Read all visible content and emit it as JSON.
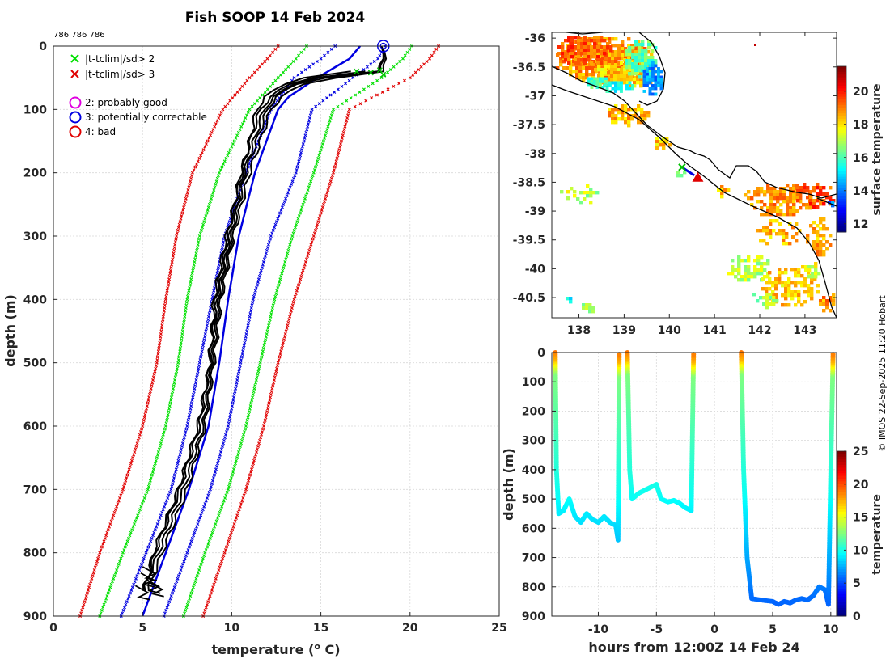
{
  "title": "Fish SOOP 14 Feb 2024",
  "id_label": "786 786 786",
  "credit": "© IMOS 22-Sep-2025 11:20 Hobart",
  "legend": {
    "items": [
      {
        "symbol": "x",
        "color": "#00e000",
        "label": "|t-tclim|/sd> 2"
      },
      {
        "symbol": "x",
        "color": "#e00000",
        "label": "|t-tclim|/sd> 3"
      },
      {
        "symbol": "o",
        "color": "#e000e0",
        "label": "2: probably good"
      },
      {
        "symbol": "o",
        "color": "#0000e0",
        "label": "3: potentially correctable"
      },
      {
        "symbol": "o",
        "color": "#e00000",
        "label": "4: bad"
      }
    ]
  },
  "chart_data": [
    {
      "type": "line",
      "name": "profile",
      "xlabel": "temperature (o C)",
      "ylabel": "depth (m)",
      "xlim": [
        0,
        25
      ],
      "ylim": [
        900,
        0
      ],
      "xticks": [
        0,
        5,
        10,
        15,
        20,
        25
      ],
      "yticks": [
        0,
        100,
        200,
        300,
        400,
        500,
        600,
        700,
        800,
        900
      ],
      "series": [
        {
          "name": "red-low",
          "color": "#e00000",
          "style": "dotted",
          "depth": [
            0,
            20,
            50,
            100,
            200,
            300,
            400,
            500,
            600,
            700,
            800,
            900
          ],
          "temp": [
            12.6,
            12.0,
            11.0,
            9.5,
            7.8,
            6.9,
            6.3,
            5.8,
            5.0,
            3.9,
            2.6,
            1.5
          ]
        },
        {
          "name": "green-low",
          "color": "#00e000",
          "style": "dotted",
          "depth": [
            0,
            20,
            50,
            100,
            200,
            300,
            400,
            500,
            600,
            700,
            800,
            900
          ],
          "temp": [
            14.2,
            13.6,
            12.6,
            11.0,
            9.3,
            8.2,
            7.5,
            7.0,
            6.3,
            5.3,
            3.9,
            2.6
          ]
        },
        {
          "name": "blue-low",
          "color": "#0000e0",
          "style": "dotted",
          "depth": [
            0,
            20,
            50,
            100,
            200,
            300,
            400,
            500,
            600,
            700,
            800,
            900
          ],
          "temp": [
            15.8,
            15.0,
            13.5,
            12.2,
            10.8,
            9.6,
            8.9,
            8.2,
            7.5,
            6.6,
            5.2,
            3.8
          ]
        },
        {
          "name": "blue-mean",
          "color": "#0000e0",
          "style": "solid",
          "depth": [
            0,
            20,
            50,
            80,
            100,
            200,
            300,
            400,
            500,
            600,
            700,
            800,
            900
          ],
          "temp": [
            17.2,
            16.6,
            14.8,
            13.2,
            12.6,
            11.3,
            10.4,
            9.8,
            9.3,
            8.7,
            7.6,
            6.3,
            5.0
          ]
        },
        {
          "name": "blue-high",
          "color": "#0000e0",
          "style": "dotted",
          "depth": [
            0,
            20,
            50,
            100,
            200,
            300,
            400,
            500,
            600,
            700,
            800,
            900
          ],
          "temp": [
            18.6,
            18.2,
            16.8,
            14.5,
            13.6,
            12.2,
            11.2,
            10.5,
            9.8,
            8.8,
            7.5,
            6.2
          ]
        },
        {
          "name": "green-high",
          "color": "#00e000",
          "style": "dotted",
          "depth": [
            0,
            20,
            50,
            100,
            200,
            300,
            400,
            500,
            600,
            700,
            800,
            900
          ],
          "temp": [
            20.1,
            19.6,
            18.4,
            15.7,
            14.6,
            13.4,
            12.4,
            11.6,
            10.8,
            9.8,
            8.5,
            7.3
          ]
        },
        {
          "name": "red-high",
          "color": "#e00000",
          "style": "dotted",
          "depth": [
            0,
            20,
            50,
            100,
            200,
            300,
            400,
            500,
            600,
            700,
            800,
            900
          ],
          "temp": [
            21.6,
            21.1,
            20.0,
            16.6,
            15.7,
            14.6,
            13.5,
            12.6,
            11.8,
            10.8,
            9.6,
            8.4
          ]
        },
        {
          "name": "obs-1",
          "color": "#000000",
          "style": "solid",
          "depth": [
            0,
            40,
            50,
            60,
            80,
            100,
            200,
            300,
            400,
            500,
            600,
            700,
            800,
            860
          ],
          "temp": [
            18.5,
            18.4,
            15.2,
            13.6,
            12.5,
            12.0,
            10.8,
            10.0,
            9.3,
            8.9,
            8.4,
            7.3,
            5.9,
            5.0
          ]
        },
        {
          "name": "obs-2",
          "color": "#000000",
          "style": "solid",
          "depth": [
            0,
            40,
            50,
            60,
            80,
            100,
            200,
            300,
            400,
            500,
            600,
            700,
            800,
            860
          ],
          "temp": [
            18.5,
            18.3,
            14.5,
            13.2,
            12.2,
            11.6,
            10.5,
            9.8,
            9.1,
            8.8,
            8.2,
            7.1,
            5.7,
            5.1
          ]
        },
        {
          "name": "obs-3",
          "color": "#000000",
          "style": "solid",
          "depth": [
            0,
            40,
            50,
            60,
            80,
            100,
            200,
            300,
            400,
            500,
            600,
            700,
            800,
            860
          ],
          "temp": [
            18.5,
            18.6,
            15.8,
            14.0,
            12.8,
            12.2,
            11.0,
            10.1,
            9.4,
            9.0,
            8.5,
            7.5,
            6.1,
            5.3
          ]
        },
        {
          "name": "obs-4",
          "color": "#000000",
          "style": "solid",
          "depth": [
            40,
            50,
            60,
            80,
            100,
            200,
            300,
            400,
            500
          ],
          "temp": [
            17.6,
            14.8,
            13.4,
            12.4,
            11.8,
            10.7,
            9.9,
            9.2,
            8.7
          ]
        },
        {
          "name": "obs-5",
          "color": "#000000",
          "style": "solid",
          "depth": [
            40,
            50,
            60,
            80,
            100,
            200,
            300,
            400,
            500,
            600,
            700,
            800,
            850
          ],
          "temp": [
            16.8,
            14.0,
            12.9,
            11.9,
            11.4,
            10.6,
            9.7,
            9.0,
            8.8,
            8.1,
            7.0,
            5.6,
            5.2
          ]
        }
      ]
    },
    {
      "type": "heatmap",
      "name": "sst-map",
      "xlim": [
        137.4,
        143.7
      ],
      "ylim": [
        -40.85,
        -35.9
      ],
      "xticks": [
        138,
        139,
        140,
        141,
        142,
        143
      ],
      "yticks": [
        -36,
        -36.5,
        -37,
        -37.5,
        -38,
        -38.5,
        -39,
        -39.5,
        -40,
        -40.5
      ],
      "colorbar": {
        "label": "surface temperature",
        "ticks": [
          12,
          14,
          16,
          18,
          20
        ],
        "range": [
          11.5,
          21.5
        ]
      }
    },
    {
      "type": "scatter",
      "name": "depth-time",
      "xlabel": "hours from 12:00Z 14 Feb 24",
      "ylabel": "depth (m)",
      "xlim": [
        -14,
        10.5
      ],
      "ylim": [
        900,
        0
      ],
      "xticks": [
        -10,
        -5,
        0,
        5,
        10
      ],
      "yticks": [
        0,
        100,
        200,
        300,
        400,
        500,
        600,
        700,
        800,
        900
      ],
      "colorbar": {
        "label": "temperature",
        "ticks": [
          0,
          5,
          10,
          15,
          20,
          25
        ],
        "range": [
          0,
          25
        ]
      },
      "tracks": [
        {
          "hours": [
            -13.7,
            -13.6,
            -13.4,
            -13.0,
            -12.5,
            -12.0,
            -11.5,
            -11.0,
            -10.5,
            -10.0,
            -9.5,
            -9.0,
            -8.5,
            -8.3,
            -8.2
          ],
          "depth": [
            0,
            400,
            550,
            540,
            500,
            560,
            580,
            550,
            570,
            580,
            560,
            580,
            590,
            640,
            0
          ]
        },
        {
          "hours": [
            -7.5,
            -7.3,
            -7.1,
            -6.5,
            -6.0,
            -5.5,
            -5.0,
            -4.6,
            -4.0,
            -3.5,
            -3.0,
            -2.5,
            -2.0,
            -1.8
          ],
          "depth": [
            0,
            400,
            500,
            480,
            470,
            460,
            450,
            500,
            510,
            505,
            515,
            530,
            540,
            0
          ]
        },
        {
          "hours": [
            2.3,
            2.5,
            2.8,
            3.2,
            4.0,
            5.0,
            5.5,
            6.0,
            6.5,
            7.0,
            7.5,
            8.0,
            8.5,
            9.0,
            9.5,
            9.8,
            10.0,
            10.2
          ],
          "depth": [
            0,
            400,
            700,
            840,
            845,
            850,
            860,
            850,
            855,
            845,
            840,
            845,
            830,
            800,
            810,
            860,
            400,
            0
          ]
        }
      ]
    }
  ]
}
